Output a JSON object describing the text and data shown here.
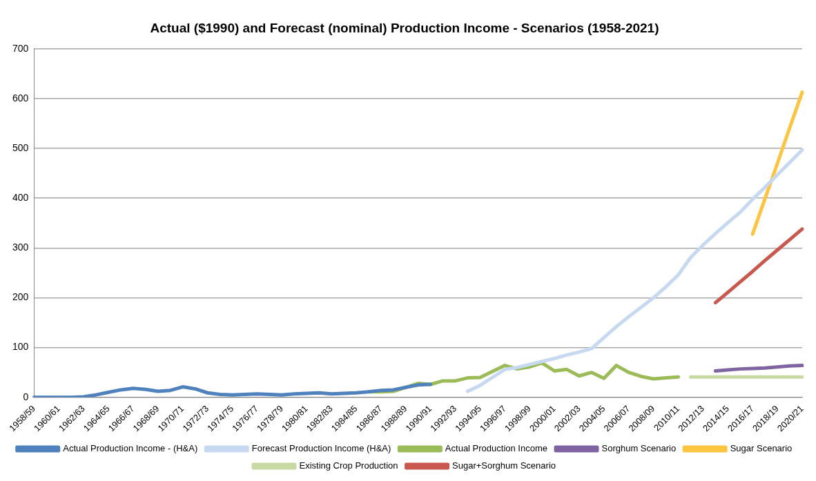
{
  "chart_data": {
    "type": "line",
    "title": "Actual ($1990) and Forecast (nominal) Production Income - Scenarios (1958-2021)",
    "categories": [
      "1958/59",
      null,
      "1960/61",
      null,
      "1962/63",
      null,
      "1964/65",
      null,
      "1966/67",
      null,
      "1968/69",
      null,
      "1970/71",
      null,
      "1972/73",
      null,
      "1974/75",
      null,
      "1976/77",
      null,
      "1978/79",
      null,
      "1980/81",
      null,
      "1982/83",
      null,
      "1984/85",
      null,
      "1986/87",
      null,
      "1988/89",
      null,
      "1990/91",
      null,
      "1992/93",
      null,
      "1994/95",
      null,
      "1996/97",
      null,
      "1998/99",
      null,
      "2000/01",
      null,
      "2002/03",
      null,
      "2004/05",
      null,
      "2006/07",
      null,
      "2008/09",
      null,
      "2010/11",
      null,
      "2012/13",
      null,
      "2014/15",
      null,
      "2016/17",
      null,
      "2018/19",
      null,
      "2020/21"
    ],
    "series": [
      {
        "name": "Actual Production Income - (H&A)",
        "color": "#4f81bd",
        "values": [
          0,
          0,
          0,
          0,
          1,
          5,
          10,
          15,
          18,
          16,
          12,
          14,
          21,
          17,
          9,
          6,
          5,
          6,
          7,
          6,
          5,
          7,
          8,
          9,
          7,
          8,
          9,
          11,
          14,
          15,
          20,
          25,
          26,
          null,
          null,
          null,
          null,
          null,
          null,
          null,
          null,
          null,
          null,
          null,
          null,
          null,
          null,
          null,
          null,
          null,
          null,
          null,
          null,
          null,
          null,
          null,
          null,
          null,
          null,
          null,
          null,
          null,
          null
        ]
      },
      {
        "name": "Forecast Production Income (H&A)",
        "color": "#c6d9f1",
        "values": [
          null,
          null,
          null,
          null,
          null,
          null,
          null,
          null,
          null,
          null,
          null,
          null,
          null,
          null,
          null,
          null,
          null,
          null,
          null,
          null,
          null,
          null,
          null,
          null,
          null,
          null,
          null,
          null,
          null,
          null,
          null,
          null,
          null,
          null,
          null,
          12,
          24,
          40,
          56,
          60,
          66,
          72,
          78,
          85,
          91,
          98,
          120,
          142,
          162,
          181,
          200,
          222,
          246,
          281,
          306,
          329,
          351,
          372,
          398,
          422,
          447,
          472,
          497
        ]
      },
      {
        "name": "Actual Production Income",
        "color": "#9bbb59",
        "values": [
          null,
          null,
          null,
          null,
          null,
          null,
          null,
          null,
          null,
          null,
          null,
          null,
          null,
          null,
          null,
          null,
          null,
          null,
          null,
          null,
          null,
          null,
          null,
          null,
          null,
          null,
          null,
          11,
          11,
          12,
          20,
          28,
          26,
          33,
          33,
          39,
          40,
          52,
          64,
          57,
          61,
          69,
          53,
          56,
          43,
          50,
          38,
          64,
          50,
          42,
          37,
          39,
          41,
          null,
          null,
          null,
          null,
          null,
          null,
          null,
          null,
          null,
          null
        ]
      },
      {
        "name": "Sorghum Scenario",
        "color": "#8064a2",
        "values": [
          null,
          null,
          null,
          null,
          null,
          null,
          null,
          null,
          null,
          null,
          null,
          null,
          null,
          null,
          null,
          null,
          null,
          null,
          null,
          null,
          null,
          null,
          null,
          null,
          null,
          null,
          null,
          null,
          null,
          null,
          null,
          null,
          null,
          null,
          null,
          null,
          null,
          null,
          null,
          null,
          null,
          null,
          null,
          null,
          null,
          null,
          null,
          null,
          null,
          null,
          null,
          null,
          null,
          null,
          null,
          53,
          55,
          57,
          58,
          59,
          61,
          63,
          64
        ]
      },
      {
        "name": "Sugar Scenario",
        "color": "#fcc43f",
        "values": [
          null,
          null,
          null,
          null,
          null,
          null,
          null,
          null,
          null,
          null,
          null,
          null,
          null,
          null,
          null,
          null,
          null,
          null,
          null,
          null,
          null,
          null,
          null,
          null,
          null,
          null,
          null,
          null,
          null,
          null,
          null,
          null,
          null,
          null,
          null,
          null,
          null,
          null,
          null,
          null,
          null,
          null,
          null,
          null,
          null,
          null,
          null,
          null,
          null,
          null,
          null,
          null,
          null,
          null,
          null,
          null,
          null,
          null,
          328,
          399,
          470,
          542,
          613
        ]
      },
      {
        "name": "Existing Crop Production",
        "color": "#c8d9a4",
        "values": [
          null,
          null,
          null,
          null,
          null,
          null,
          null,
          null,
          null,
          null,
          null,
          null,
          null,
          null,
          null,
          null,
          null,
          null,
          null,
          null,
          null,
          null,
          null,
          null,
          null,
          null,
          null,
          null,
          null,
          null,
          null,
          null,
          null,
          null,
          null,
          null,
          null,
          null,
          null,
          null,
          null,
          null,
          null,
          null,
          null,
          null,
          null,
          null,
          null,
          null,
          null,
          null,
          null,
          41,
          41,
          41,
          41,
          41,
          41,
          41,
          41,
          41,
          41
        ]
      },
      {
        "name": "Sugar+Sorghum Scenario",
        "color": "#c9584e",
        "values": [
          null,
          null,
          null,
          null,
          null,
          null,
          null,
          null,
          null,
          null,
          null,
          null,
          null,
          null,
          null,
          null,
          null,
          null,
          null,
          null,
          null,
          null,
          null,
          null,
          null,
          null,
          null,
          null,
          null,
          null,
          null,
          null,
          null,
          null,
          null,
          null,
          null,
          null,
          null,
          null,
          null,
          null,
          null,
          null,
          null,
          null,
          null,
          null,
          null,
          null,
          null,
          null,
          null,
          null,
          null,
          190,
          211,
          232,
          253,
          275,
          296,
          317,
          338
        ]
      }
    ],
    "ylim": [
      0,
      700
    ],
    "yticks": [
      0,
      100,
      200,
      300,
      400,
      500,
      600,
      700
    ],
    "grid": "y",
    "legend": "bottom",
    "marker": "none",
    "line_style": "solid"
  }
}
